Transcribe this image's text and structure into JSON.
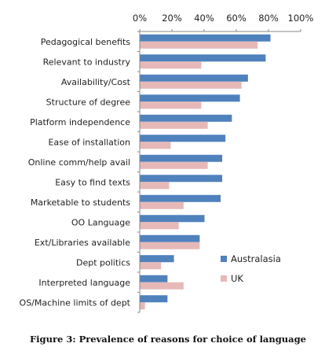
{
  "caption": "Figure 3: Prevalence of reasons for choice of language",
  "chart_data": {
    "type": "bar",
    "orientation": "horizontal",
    "categories": [
      "Pedagogical benefits",
      "Relevant to industry",
      "Availability/Cost",
      "Structure of degree",
      "Platform independence",
      "Ease of installation",
      "Online comm/help avail",
      "Easy to find texts",
      "Marketable to students",
      "OO Language",
      "Ext/Libraries available",
      "Dept politics",
      "Interpreted language",
      "OS/Machine limits of dept"
    ],
    "series": [
      {
        "name": "Australasia",
        "color": "#4f81bd",
        "values": [
          81,
          78,
          67,
          62,
          57,
          53,
          51,
          51,
          50,
          40,
          37,
          21,
          17,
          17
        ]
      },
      {
        "name": "UK",
        "color": "#e6b9b8",
        "values": [
          73,
          38,
          63,
          38,
          42,
          19,
          42,
          18,
          27,
          24,
          37,
          13,
          27,
          3
        ]
      }
    ],
    "x_ticks": [
      "0%",
      "20%",
      "40%",
      "60%",
      "80%",
      "100%"
    ],
    "xlim": [
      0,
      100
    ],
    "x_axis_position": "top",
    "grid": false,
    "legend_position": "right"
  }
}
